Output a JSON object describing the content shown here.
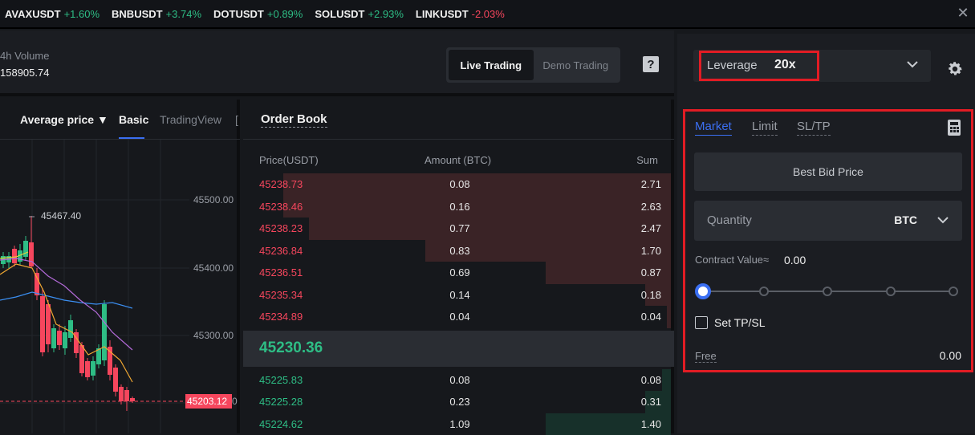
{
  "ticker": [
    {
      "symbol": "AVAXUSDT",
      "change": "+1.60%",
      "dir": "pos"
    },
    {
      "symbol": "BNBUSDT",
      "change": "+3.74%",
      "dir": "pos"
    },
    {
      "symbol": "DOTUSDT",
      "change": "+0.89%",
      "dir": "pos"
    },
    {
      "symbol": "SOLUSDT",
      "change": "+2.93%",
      "dir": "pos"
    },
    {
      "symbol": "LINKUSDT",
      "change": "-2.03%",
      "dir": "neg"
    }
  ],
  "header": {
    "volume_label": "4h Volume",
    "volume_value": "158905.74",
    "mode_live": "Live Trading",
    "mode_demo": "Demo Trading",
    "help_glyph": "?"
  },
  "chart": {
    "tab_avg": "Average price",
    "tab_basic": "Basic",
    "tab_tv": "TradingView",
    "tab_extra": "[",
    "y_ticks": [
      "45500.00",
      "45400.00",
      "45300.00"
    ],
    "peak_label": "45467.40",
    "current_price": "45203.12",
    "current_price_suffix": "0"
  },
  "orderbook": {
    "title": "Order Book",
    "col_price": "Price(USDT)",
    "col_amount": "Amount (BTC)",
    "col_sum": "Sum",
    "asks": [
      {
        "price": "45238.73",
        "amount": "0.08",
        "sum": "2.71",
        "depth": 0.9
      },
      {
        "price": "45238.46",
        "amount": "0.16",
        "sum": "2.63",
        "depth": 0.9
      },
      {
        "price": "45238.23",
        "amount": "0.77",
        "sum": "2.47",
        "depth": 0.84
      },
      {
        "price": "45236.84",
        "amount": "0.83",
        "sum": "1.70",
        "depth": 0.57
      },
      {
        "price": "45236.51",
        "amount": "0.69",
        "sum": "0.87",
        "depth": 0.29
      },
      {
        "price": "45235.34",
        "amount": "0.14",
        "sum": "0.18",
        "depth": 0.06
      },
      {
        "price": "45234.89",
        "amount": "0.04",
        "sum": "0.04",
        "depth": 0.01
      }
    ],
    "mid_price": "45230.36",
    "bids": [
      {
        "price": "45225.83",
        "amount": "0.08",
        "sum": "0.08",
        "depth": 0.02
      },
      {
        "price": "45225.28",
        "amount": "0.23",
        "sum": "0.31",
        "depth": 0.06
      },
      {
        "price": "45224.62",
        "amount": "1.09",
        "sum": "1.40",
        "depth": 0.29
      }
    ]
  },
  "order_panel": {
    "leverage_label": "Leverage",
    "leverage_value": "20x",
    "tabs": [
      "Market",
      "Limit",
      "SL/TP"
    ],
    "best_bid_label": "Best Bid Price",
    "quantity_placeholder": "Quantity",
    "quantity_unit": "BTC",
    "contract_value_label": "Contract Value≈",
    "contract_value": "0.00",
    "slider_level": 0,
    "set_tpsl_label": "Set TP/SL",
    "free_label": "Free",
    "free_value": "0.00"
  },
  "colors": {
    "up": "#2ebd85",
    "down": "#f6465d",
    "accent": "#3b6ff2",
    "highlight_box": "#e21c24"
  }
}
